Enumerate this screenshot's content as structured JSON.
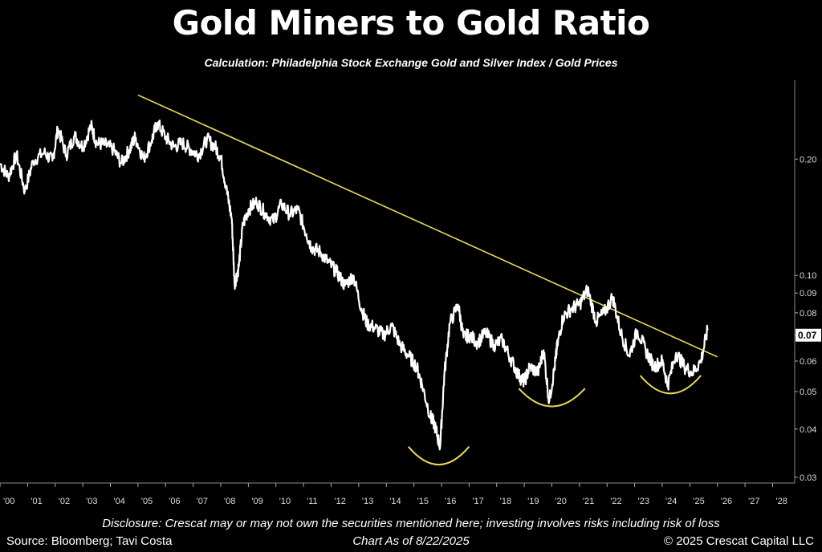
{
  "title": "Gold Miners to Gold Ratio",
  "subtitle": "Calculation: Philadelphia Stock Exchange Gold and Silver Index / Gold Prices",
  "footer": {
    "disclosure": "Disclosure: Crescat may or may not own the securities mentioned here; investing involves risks including risk of loss",
    "source": "Source: Bloomberg; Tavi Costa",
    "as_of": "Chart As of 8/22/2025",
    "copyright": "© 2025 Crescat Capital LLC"
  },
  "colors": {
    "background": "#000000",
    "series": "#ffffff",
    "trendline": "#e8d95a",
    "annotations": "#e8d95a"
  },
  "chart_data": {
    "type": "line",
    "title": "Gold Miners to Gold Ratio",
    "subtitle": "Calculation: Philadelphia Stock Exchange Gold and Silver Index / Gold Prices",
    "yscale": "log",
    "ylim": [
      0.029,
      0.32
    ],
    "xlim": [
      2000.0,
      2028.8
    ],
    "y_ticks": [
      0.03,
      0.04,
      0.05,
      0.06,
      0.07,
      0.08,
      0.09,
      0.1,
      0.2
    ],
    "y_tick_labels": [
      "0.03",
      "0.04",
      "0.05",
      "0.06",
      "0.07",
      "0.08",
      "0.09",
      "0.10",
      "0.20"
    ],
    "current_value_label": "0.07",
    "current_value": 0.07,
    "x_ticks": [
      2000,
      2001,
      2002,
      2003,
      2004,
      2005,
      2006,
      2007,
      2008,
      2009,
      2010,
      2011,
      2012,
      2013,
      2014,
      2015,
      2016,
      2017,
      2018,
      2019,
      2020,
      2021,
      2022,
      2023,
      2024,
      2025,
      2026,
      2027,
      2028
    ],
    "x_tick_labels": [
      "'00",
      "'01",
      "'02",
      "'03",
      "'04",
      "'05",
      "'06",
      "'07",
      "'08",
      "'09",
      "'10",
      "'11",
      "'12",
      "'13",
      "'14",
      "'15",
      "'16",
      "'17",
      "'18",
      "'19",
      "'20",
      "'21",
      "'22",
      "'23",
      "'24",
      "'25",
      "'26",
      "'27",
      "'28"
    ],
    "series": [
      {
        "x": [
          2000.0,
          2000.3,
          2000.6,
          2000.9,
          2001.2,
          2001.6,
          2001.9,
          2002.1,
          2002.4,
          2002.7,
          2003.0,
          2003.3,
          2003.5,
          2003.8,
          2004.1,
          2004.4,
          2004.7,
          2004.9,
          2005.2,
          2005.5,
          2005.7,
          2006.0,
          2006.3,
          2006.6,
          2006.9,
          2007.2,
          2007.5,
          2007.8,
          2008.0,
          2008.2,
          2008.4,
          2008.5,
          2008.65,
          2008.8,
          2009.0,
          2009.3,
          2009.6,
          2009.9,
          2010.2,
          2010.5,
          2010.8,
          2011.1,
          2011.3,
          2011.6,
          2011.9,
          2012.2,
          2012.5,
          2012.8,
          2013.1,
          2013.3,
          2013.6,
          2013.9,
          2014.2,
          2014.5,
          2014.8,
          2015.1,
          2015.3,
          2015.6,
          2015.75,
          2015.95,
          2016.1,
          2016.3,
          2016.6,
          2016.8,
          2017.0,
          2017.3,
          2017.6,
          2017.9,
          2018.2,
          2018.5,
          2018.8,
          2019.0,
          2019.2,
          2019.5,
          2019.7,
          2019.9,
          2020.1,
          2020.2,
          2020.4,
          2020.7,
          2021.0,
          2021.3,
          2021.6,
          2021.9,
          2022.2,
          2022.5,
          2022.8,
          2023.1,
          2023.4,
          2023.7,
          2024.0,
          2024.2,
          2024.5,
          2024.8,
          2025.1,
          2025.4,
          2025.64
        ],
        "values": [
          0.195,
          0.18,
          0.205,
          0.165,
          0.198,
          0.208,
          0.198,
          0.24,
          0.205,
          0.23,
          0.215,
          0.244,
          0.22,
          0.218,
          0.212,
          0.195,
          0.212,
          0.228,
          0.2,
          0.224,
          0.248,
          0.228,
          0.215,
          0.22,
          0.212,
          0.205,
          0.225,
          0.215,
          0.202,
          0.168,
          0.14,
          0.095,
          0.105,
          0.135,
          0.148,
          0.155,
          0.145,
          0.138,
          0.153,
          0.144,
          0.148,
          0.128,
          0.118,
          0.115,
          0.108,
          0.102,
          0.094,
          0.1,
          0.082,
          0.075,
          0.073,
          0.07,
          0.074,
          0.066,
          0.062,
          0.058,
          0.052,
          0.043,
          0.041,
          0.036,
          0.055,
          0.075,
          0.084,
          0.069,
          0.07,
          0.067,
          0.071,
          0.066,
          0.068,
          0.061,
          0.055,
          0.053,
          0.058,
          0.056,
          0.064,
          0.047,
          0.058,
          0.066,
          0.078,
          0.082,
          0.084,
          0.092,
          0.076,
          0.08,
          0.088,
          0.071,
          0.062,
          0.072,
          0.064,
          0.058,
          0.06,
          0.052,
          0.063,
          0.058,
          0.056,
          0.06,
          0.072
        ]
      }
    ],
    "trendline": {
      "x": [
        2005.0,
        2026.0
      ],
      "y": [
        0.293,
        0.0615
      ]
    },
    "annotations": [
      {
        "type": "arc",
        "x_center": 2015.9,
        "x_halfwidth": 1.1,
        "y": 0.035
      },
      {
        "type": "arc",
        "x_center": 2020.0,
        "x_halfwidth": 1.2,
        "y": 0.0495
      },
      {
        "type": "arc",
        "x_center": 2024.3,
        "x_halfwidth": 1.1,
        "y": 0.0535
      }
    ],
    "grid": false,
    "legend": "none"
  }
}
